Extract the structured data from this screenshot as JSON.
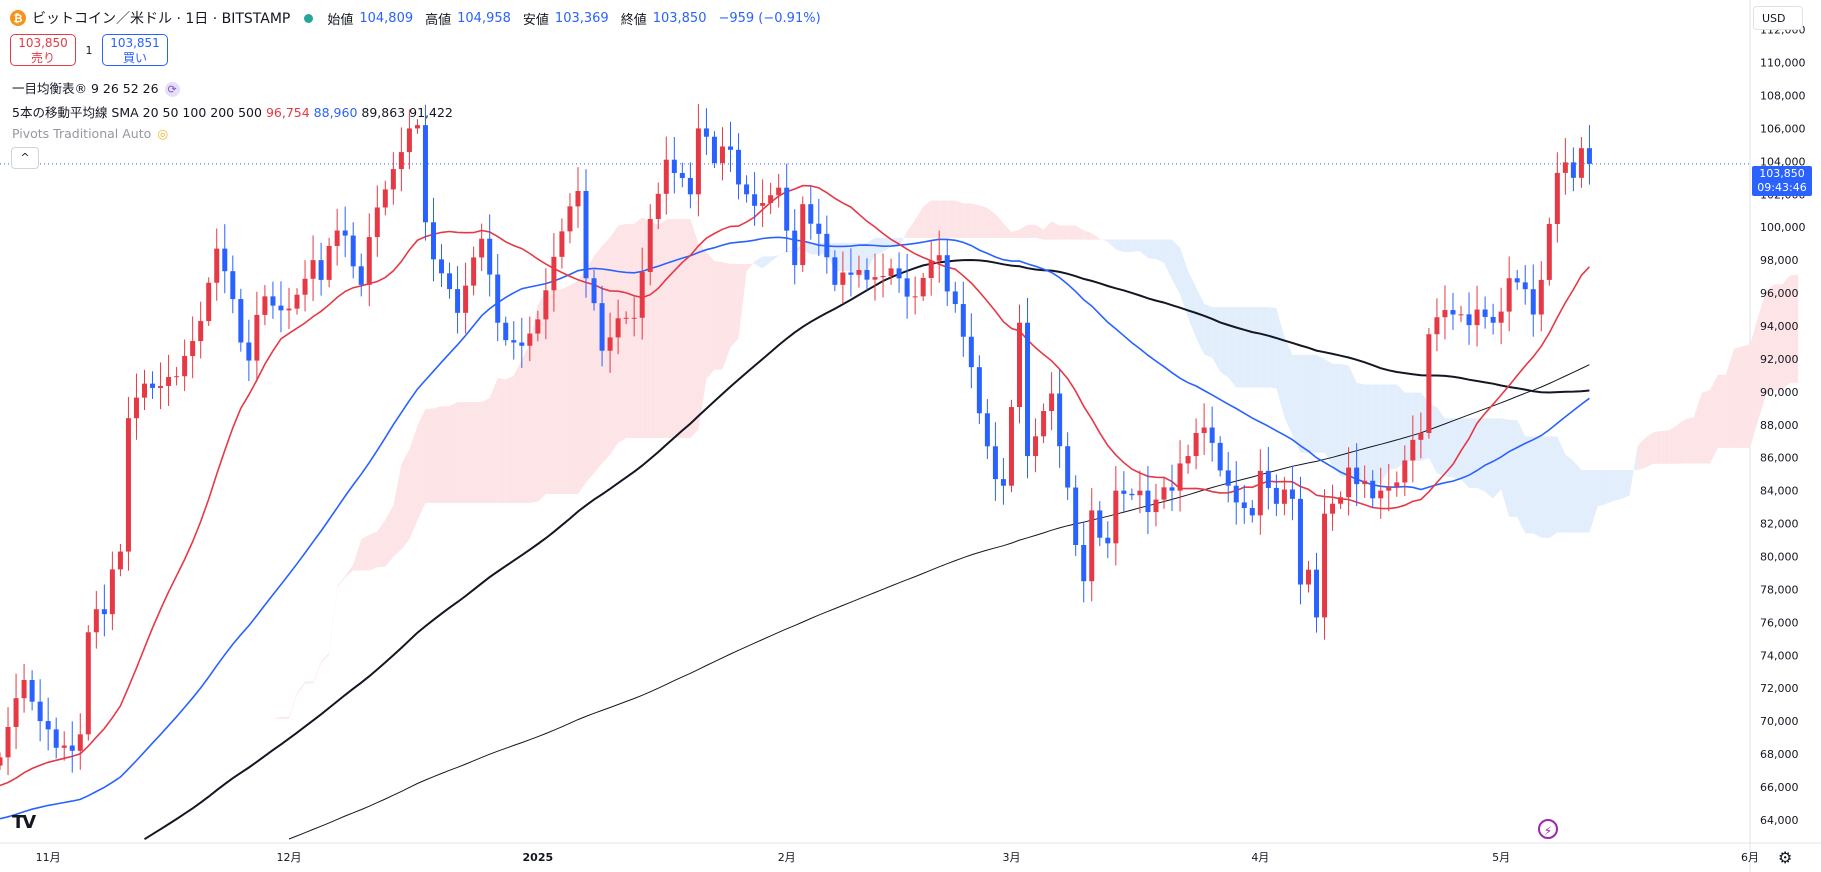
{
  "header": {
    "coin_icon": "bitcoin-icon",
    "title": "ビットコイン／米ドル · 1日 · BITSTAMP",
    "open_label": "始値",
    "open_value": "104,809",
    "high_label": "高値",
    "high_value": "104,958",
    "low_label": "安値",
    "low_value": "103,369",
    "close_label": "終値",
    "close_value": "103,850",
    "change": "−959 (−0.91%)"
  },
  "trade": {
    "sell_price": "103,850",
    "sell_label": "売り",
    "qty": "1",
    "buy_price": "103,851",
    "buy_label": "買い"
  },
  "indicators": {
    "ichimoku": "一目均衡表® 9 26 52 26",
    "sma_name": "5本の移動平均線 SMA 20 50 100 200 500",
    "sma20": "96,754",
    "sma50": "88,960",
    "sma100": "89,863",
    "sma200": "91,422",
    "pivots": "Pivots Traditional Auto",
    "collapse_icon": "^"
  },
  "price_scale": {
    "currency": "USD",
    "current_price": "103,850",
    "countdown": "09:43:46"
  },
  "colors": {
    "up": "#e53946",
    "down": "#2962ff",
    "sma20": "#e53946",
    "sma50": "#2962ff",
    "sma100": "#131722",
    "sma200": "#131722",
    "cloud_bull": "#fde4e6",
    "cloud_bear": "#e3eefc"
  },
  "chart_data": {
    "type": "candlestick",
    "y_ticks": [
      64000,
      66000,
      68000,
      70000,
      72000,
      74000,
      76000,
      78000,
      80000,
      82000,
      84000,
      86000,
      88000,
      90000,
      92000,
      94000,
      96000,
      98000,
      100000,
      102000,
      104000,
      106000,
      108000,
      110000,
      112000
    ],
    "ylim": [
      62600,
      113800
    ],
    "x_ticks": [
      {
        "label": "11月",
        "date": "2024-11-01"
      },
      {
        "label": "12月",
        "date": "2024-12-01"
      },
      {
        "label": "2025",
        "date": "2025-01-01"
      },
      {
        "label": "2月",
        "date": "2025-02-01"
      },
      {
        "label": "3月",
        "date": "2025-03-01"
      },
      {
        "label": "4月",
        "date": "2025-04-01"
      },
      {
        "label": "5月",
        "date": "2025-05-01"
      },
      {
        "label": "6月",
        "date": "2025-06-01"
      }
    ],
    "xlim": [
      "2024-10-26",
      "2025-06-01"
    ],
    "close_anchors": [
      [
        "2024-10-26",
        67800
      ],
      [
        "2024-10-29",
        72500
      ],
      [
        "2024-11-01",
        69500
      ],
      [
        "2024-11-04",
        68200
      ],
      [
        "2024-11-05",
        69200
      ],
      [
        "2024-11-06",
        75400
      ],
      [
        "2024-11-08",
        76500
      ],
      [
        "2024-11-10",
        80300
      ],
      [
        "2024-11-11",
        88400
      ],
      [
        "2024-11-13",
        90500
      ],
      [
        "2024-11-16",
        90900
      ],
      [
        "2024-11-20",
        94300
      ],
      [
        "2024-11-22",
        98700
      ],
      [
        "2024-11-25",
        93000
      ],
      [
        "2024-11-26",
        91900
      ],
      [
        "2024-11-28",
        95800
      ],
      [
        "2024-12-02",
        95900
      ],
      [
        "2024-12-04",
        98000
      ],
      [
        "2024-12-05",
        96800
      ],
      [
        "2024-12-07",
        99800
      ],
      [
        "2024-12-10",
        96500
      ],
      [
        "2024-12-12",
        101200
      ],
      [
        "2024-12-16",
        106000
      ],
      [
        "2024-12-17",
        106200
      ],
      [
        "2024-12-18",
        100300
      ],
      [
        "2024-12-20",
        97200
      ],
      [
        "2024-12-22",
        94800
      ],
      [
        "2024-12-25",
        99300
      ],
      [
        "2024-12-27",
        94200
      ],
      [
        "2024-12-30",
        92800
      ],
      [
        "2025-01-01",
        94400
      ],
      [
        "2025-01-03",
        98200
      ],
      [
        "2025-01-06",
        102200
      ],
      [
        "2025-01-07",
        96900
      ],
      [
        "2025-01-09",
        92500
      ],
      [
        "2025-01-12",
        94500
      ],
      [
        "2025-01-13",
        94500
      ],
      [
        "2025-01-15",
        100500
      ],
      [
        "2025-01-17",
        104100
      ],
      [
        "2025-01-20",
        102000
      ],
      [
        "2025-01-21",
        106000
      ],
      [
        "2025-01-23",
        103900
      ],
      [
        "2025-01-25",
        104700
      ],
      [
        "2025-01-27",
        102000
      ],
      [
        "2025-01-28",
        101300
      ],
      [
        "2025-01-31",
        102400
      ],
      [
        "2025-02-02",
        97700
      ],
      [
        "2025-02-03",
        101400
      ],
      [
        "2025-02-07",
        96500
      ],
      [
        "2025-02-10",
        97400
      ],
      [
        "2025-02-14",
        97500
      ],
      [
        "2025-02-17",
        95800
      ],
      [
        "2025-02-20",
        98300
      ],
      [
        "2025-02-21",
        96100
      ],
      [
        "2025-02-24",
        91500
      ],
      [
        "2025-02-25",
        88700
      ],
      [
        "2025-02-27",
        84700
      ],
      [
        "2025-02-28",
        84300
      ],
      [
        "2025-03-02",
        94200
      ],
      [
        "2025-03-03",
        86100
      ],
      [
        "2025-03-04",
        87300
      ],
      [
        "2025-03-06",
        89900
      ],
      [
        "2025-03-07",
        86700
      ],
      [
        "2025-03-09",
        80700
      ],
      [
        "2025-03-10",
        78500
      ],
      [
        "2025-03-11",
        82800
      ],
      [
        "2025-03-13",
        80800
      ],
      [
        "2025-03-14",
        84000
      ],
      [
        "2025-03-17",
        84000
      ],
      [
        "2025-03-18",
        82700
      ],
      [
        "2025-03-20",
        84200
      ],
      [
        "2025-03-21",
        84000
      ],
      [
        "2025-03-23",
        86100
      ],
      [
        "2025-03-24",
        87500
      ],
      [
        "2025-03-26",
        86900
      ],
      [
        "2025-03-28",
        84300
      ],
      [
        "2025-03-31",
        82500
      ],
      [
        "2025-04-01",
        85200
      ],
      [
        "2025-04-03",
        83200
      ],
      [
        "2025-04-05",
        83500
      ],
      [
        "2025-04-06",
        78300
      ],
      [
        "2025-04-07",
        79200
      ],
      [
        "2025-04-08",
        76300
      ],
      [
        "2025-04-09",
        82600
      ],
      [
        "2025-04-11",
        83600
      ],
      [
        "2025-04-12",
        85400
      ],
      [
        "2025-04-14",
        84600
      ],
      [
        "2025-04-16",
        84000
      ],
      [
        "2025-04-18",
        84500
      ],
      [
        "2025-04-21",
        87500
      ],
      [
        "2025-04-22",
        93500
      ],
      [
        "2025-04-25",
        94700
      ],
      [
        "2025-04-28",
        95000
      ],
      [
        "2025-04-30",
        94200
      ],
      [
        "2025-05-02",
        96900
      ],
      [
        "2025-05-05",
        94700
      ],
      [
        "2025-05-06",
        96800
      ],
      [
        "2025-05-08",
        103300
      ],
      [
        "2025-05-10",
        103000
      ],
      [
        "2025-05-11",
        104800
      ],
      [
        "2025-05-12",
        103850
      ]
    ],
    "series": [
      {
        "name": "SMA 20",
        "period": 20,
        "value": 96754
      },
      {
        "name": "SMA 50",
        "period": 50,
        "value": 88960
      },
      {
        "name": "SMA 100",
        "period": 100,
        "value": 89863
      },
      {
        "name": "SMA 200",
        "period": 200,
        "value": 91422
      }
    ]
  }
}
